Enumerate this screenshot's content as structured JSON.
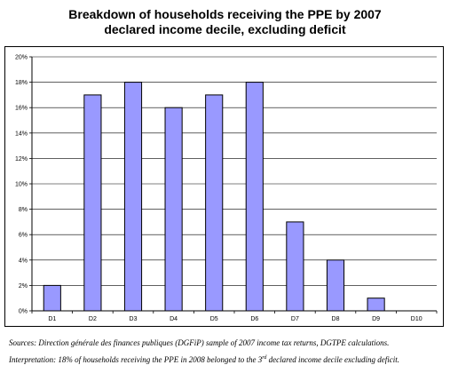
{
  "title": {
    "line1": "Breakdown of households receiving the PPE by 2007",
    "line2": "declared income decile, excluding deficit"
  },
  "chart_data": {
    "type": "bar",
    "categories": [
      "D1",
      "D2",
      "D3",
      "D4",
      "D5",
      "D6",
      "D7",
      "D8",
      "D9",
      "D10"
    ],
    "values": [
      2,
      17,
      18,
      16,
      17,
      18,
      7,
      4,
      1,
      0
    ],
    "ylim": [
      0,
      20
    ],
    "yticks": [
      0,
      2,
      4,
      6,
      8,
      10,
      12,
      14,
      16,
      18,
      20
    ],
    "ytick_labels": [
      "0%",
      "2%",
      "4%",
      "6%",
      "8%",
      "10%",
      "12%",
      "14%",
      "16%",
      "18%",
      "20%"
    ],
    "grid": "horizontal",
    "bar_color": "#9999ff",
    "bar_stroke": "#000000",
    "grid_color": "#000000",
    "legend": "none",
    "xlabel": "",
    "ylabel": ""
  },
  "notes": {
    "sources": "Sources: Direction générale des finances publiques (DGFiP) sample of 2007 income tax returns, DGTPE calculations.",
    "interpretation_before": "Interpretation: 18% of households receiving the PPE in 2008 belonged to the 3",
    "interpretation_sup": "rd",
    "interpretation_after": " declared income decile excluding deficit."
  }
}
